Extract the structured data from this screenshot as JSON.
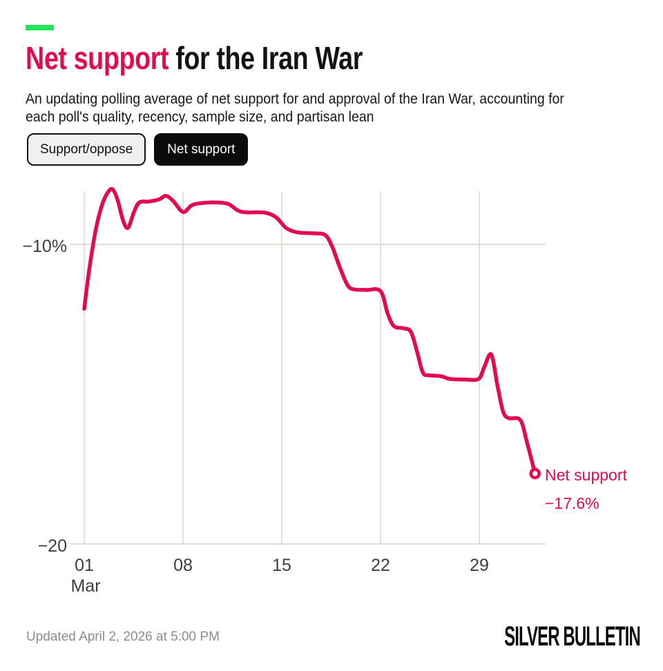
{
  "header": {
    "title_highlight": "Net support",
    "title_rest": " for the Iran War",
    "subtitle_line1": "An updating polling average of net support for and approval of the Iran War, accounting for",
    "subtitle_line2": "each poll's quality, recency, sample size, and partisan lean"
  },
  "toggles": [
    {
      "label": "Support/oppose",
      "active": false
    },
    {
      "label": "Net support",
      "active": true
    }
  ],
  "chart_data": {
    "type": "line",
    "title": "Net support for the Iran War",
    "series_name": "Net support",
    "unit": "percentage points (net support)",
    "x_axis": {
      "month_label": "Mar",
      "tick_labels": [
        "01",
        "08",
        "15",
        "22",
        "29"
      ],
      "tick_days": [
        1,
        8,
        15,
        22,
        29
      ],
      "range_days": [
        1,
        33.7
      ]
    },
    "y_axis": {
      "tick_labels": [
        "−10%",
        "−20"
      ],
      "tick_values": [
        -10,
        -20
      ],
      "range": [
        -20.3,
        -7.8
      ],
      "grid": true
    },
    "points_day_value": [
      [
        1.0,
        -12.15
      ],
      [
        1.35,
        -10.85
      ],
      [
        1.8,
        -9.55
      ],
      [
        2.25,
        -8.7
      ],
      [
        2.65,
        -8.28
      ],
      [
        3.0,
        -8.16
      ],
      [
        3.35,
        -8.5
      ],
      [
        3.75,
        -9.2
      ],
      [
        4.1,
        -9.45
      ],
      [
        4.5,
        -8.95
      ],
      [
        4.9,
        -8.6
      ],
      [
        5.6,
        -8.57
      ],
      [
        6.3,
        -8.5
      ],
      [
        6.8,
        -8.38
      ],
      [
        7.3,
        -8.55
      ],
      [
        8.0,
        -8.92
      ],
      [
        8.6,
        -8.7
      ],
      [
        9.2,
        -8.63
      ],
      [
        10.3,
        -8.6
      ],
      [
        11.2,
        -8.65
      ],
      [
        11.9,
        -8.87
      ],
      [
        12.5,
        -8.93
      ],
      [
        13.8,
        -8.94
      ],
      [
        14.6,
        -9.1
      ],
      [
        15.3,
        -9.45
      ],
      [
        16.1,
        -9.6
      ],
      [
        17.2,
        -9.63
      ],
      [
        18.05,
        -9.68
      ],
      [
        18.55,
        -10.05
      ],
      [
        19.1,
        -10.75
      ],
      [
        19.65,
        -11.35
      ],
      [
        20.1,
        -11.5
      ],
      [
        21.0,
        -11.52
      ],
      [
        22.0,
        -11.56
      ],
      [
        22.5,
        -12.3
      ],
      [
        22.95,
        -12.73
      ],
      [
        23.6,
        -12.8
      ],
      [
        24.15,
        -12.92
      ],
      [
        24.6,
        -13.6
      ],
      [
        25.0,
        -14.28
      ],
      [
        25.45,
        -14.37
      ],
      [
        26.3,
        -14.4
      ],
      [
        26.9,
        -14.49
      ],
      [
        28.0,
        -14.51
      ],
      [
        28.95,
        -14.49
      ],
      [
        29.35,
        -14.1
      ],
      [
        29.85,
        -13.68
      ],
      [
        30.3,
        -14.75
      ],
      [
        30.7,
        -15.6
      ],
      [
        31.1,
        -15.8
      ],
      [
        31.9,
        -15.86
      ],
      [
        32.35,
        -16.55
      ],
      [
        32.95,
        -17.65
      ]
    ],
    "end_label": {
      "name": "Net support",
      "value": "−17.6%"
    },
    "latest_value_pct": -17.6,
    "legend": "none"
  },
  "footer": {
    "updated": "Updated April 2, 2026 at 5:00 PM",
    "brand": "SILVER BULLETIN"
  },
  "colors": {
    "accent_green": "#22e55c",
    "line_red": "#e30b4f",
    "grid": "#d9d3cb",
    "axis_text": "#403c38",
    "footer_gray": "#8f8b88"
  }
}
